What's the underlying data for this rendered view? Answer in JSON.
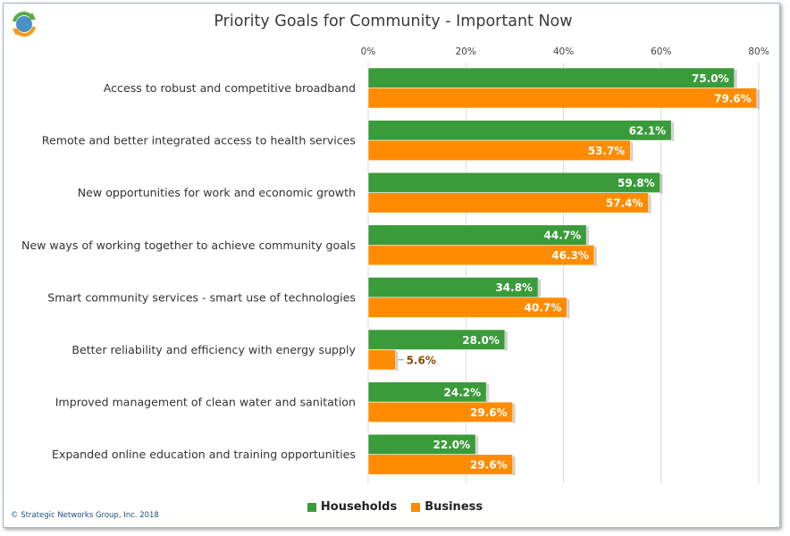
{
  "title": "Priority Goals for Community - Important Now",
  "copyright": "© Strategic Networks Group, Inc. 2018",
  "colors": {
    "households": "#3a9b3a",
    "business": "#ff8c00",
    "grid": "#d9d9d9"
  },
  "logo_icon": "recycle-arrows-globe-icon",
  "chart_data": {
    "type": "bar",
    "orientation": "horizontal",
    "title": "Priority Goals for Community - Important Now",
    "xlim": [
      0,
      80
    ],
    "x_ticks": [
      "0%",
      "20%",
      "40%",
      "60%",
      "80%"
    ],
    "categories": [
      "Access to robust and competitive broadband",
      "Remote and better integrated access to health services",
      "New opportunities for work and economic growth",
      "New ways of working together to achieve community goals",
      "Smart community services - smart use of technologies",
      "Better reliability and efficiency with energy supply",
      "Improved management of clean water and sanitation",
      "Expanded online education and training opportunities"
    ],
    "series": [
      {
        "name": "Households",
        "values": [
          75.0,
          62.1,
          59.8,
          44.7,
          34.8,
          28.0,
          24.2,
          22.0
        ],
        "labels": [
          "75.0%",
          "62.1%",
          "59.8%",
          "44.7%",
          "34.8%",
          "28.0%",
          "24.2%",
          "22.0%"
        ]
      },
      {
        "name": "Business",
        "values": [
          79.6,
          53.7,
          57.4,
          46.3,
          40.7,
          5.6,
          29.6,
          29.6
        ],
        "labels": [
          "79.6%",
          "53.7%",
          "57.4%",
          "46.3%",
          "40.7%",
          "5.6%",
          "29.6%",
          "29.6%"
        ]
      }
    ],
    "legend": "bottom",
    "grid": true
  }
}
